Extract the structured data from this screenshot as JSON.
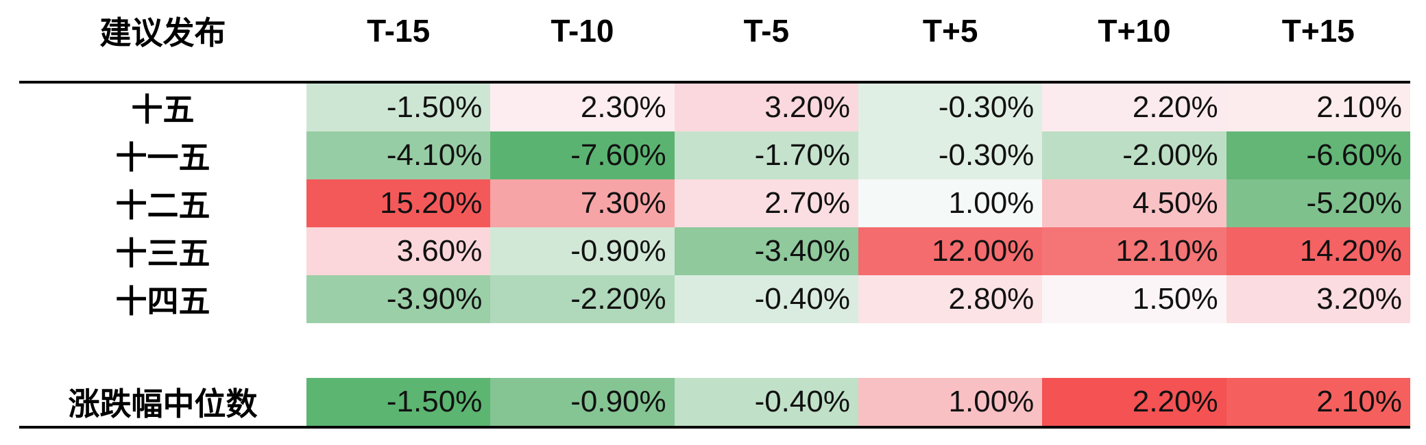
{
  "header": {
    "label": "建议发布",
    "columns": [
      "T-15",
      "T-10",
      "T-5",
      "T+5",
      "T+10",
      "T+15"
    ]
  },
  "rows": [
    {
      "label": "十五",
      "cells": [
        {
          "text": "-1.50%",
          "bg": "#cde6d3"
        },
        {
          "text": "2.30%",
          "bg": "#fdedf0"
        },
        {
          "text": "3.20%",
          "bg": "#fad8dd"
        },
        {
          "text": "-0.30%",
          "bg": "#e0efe4"
        },
        {
          "text": "2.20%",
          "bg": "#fcebee"
        },
        {
          "text": "2.10%",
          "bg": "#fceced"
        }
      ]
    },
    {
      "label": "十一五",
      "cells": [
        {
          "text": "-4.10%",
          "bg": "#97cda4"
        },
        {
          "text": "-7.60%",
          "bg": "#5bb371"
        },
        {
          "text": "-1.70%",
          "bg": "#c5e2cc"
        },
        {
          "text": "-0.30%",
          "bg": "#e0efe4"
        },
        {
          "text": "-2.00%",
          "bg": "#bcdec4"
        },
        {
          "text": "-6.60%",
          "bg": "#64b677"
        }
      ]
    },
    {
      "label": "十二五",
      "cells": [
        {
          "text": "15.20%",
          "bg": "#f4595a"
        },
        {
          "text": "7.30%",
          "bg": "#f7a4a6"
        },
        {
          "text": "2.70%",
          "bg": "#fbdee2"
        },
        {
          "text": "1.00%",
          "bg": "#f5f9f7"
        },
        {
          "text": "4.50%",
          "bg": "#f9c3c6"
        },
        {
          "text": "-5.20%",
          "bg": "#7fc18d"
        }
      ]
    },
    {
      "label": "十三五",
      "cells": [
        {
          "text": "3.60%",
          "bg": "#fbd7db"
        },
        {
          "text": "-0.90%",
          "bg": "#d2e8d7"
        },
        {
          "text": "-3.40%",
          "bg": "#8fc99c"
        },
        {
          "text": "12.00%",
          "bg": "#f46c6d"
        },
        {
          "text": "12.10%",
          "bg": "#f57476"
        },
        {
          "text": "14.20%",
          "bg": "#f46263"
        }
      ]
    },
    {
      "label": "十四五",
      "cells": [
        {
          "text": "-3.90%",
          "bg": "#9bcfa7"
        },
        {
          "text": "-2.20%",
          "bg": "#b0d8ba"
        },
        {
          "text": "-0.40%",
          "bg": "#daecdf"
        },
        {
          "text": "2.80%",
          "bg": "#fce3e6"
        },
        {
          "text": "1.50%",
          "bg": "#fbf5f7"
        },
        {
          "text": "3.20%",
          "bg": "#fbdce0"
        }
      ]
    }
  ],
  "summary": {
    "label": "涨跌幅中位数",
    "cells": [
      {
        "text": "-1.50%",
        "bg": "#5cb571"
      },
      {
        "text": "-0.90%",
        "bg": "#85c493"
      },
      {
        "text": "-0.40%",
        "bg": "#c0e0c7"
      },
      {
        "text": "1.00%",
        "bg": "#f9c0c3"
      },
      {
        "text": "2.20%",
        "bg": "#f45253"
      },
      {
        "text": "2.10%",
        "bg": "#f5605e"
      }
    ]
  },
  "chart_data": {
    "type": "heatmap",
    "title": "",
    "row_header": "建议发布",
    "columns": [
      "T-15",
      "T-10",
      "T-5",
      "T+5",
      "T+10",
      "T+15"
    ],
    "rows": [
      "十五",
      "十一五",
      "十二五",
      "十三五",
      "十四五"
    ],
    "values_pct": [
      [
        -1.5,
        2.3,
        3.2,
        -0.3,
        2.2,
        2.1
      ],
      [
        -4.1,
        -7.6,
        -1.7,
        -0.3,
        -2.0,
        -6.6
      ],
      [
        15.2,
        7.3,
        2.7,
        1.0,
        4.5,
        -5.2
      ],
      [
        3.6,
        -0.9,
        -3.4,
        12.0,
        12.1,
        14.2
      ],
      [
        -3.9,
        -2.2,
        -0.4,
        2.8,
        1.5,
        3.2
      ]
    ],
    "summary_row_label": "涨跌幅中位数",
    "summary_values_pct": [
      -1.5,
      -0.9,
      -0.4,
      1.0,
      2.2,
      2.1
    ],
    "color_scale": {
      "negative_green": "#5bb371",
      "neutral_white": "#ffffff",
      "positive_red": "#f4595a"
    }
  }
}
